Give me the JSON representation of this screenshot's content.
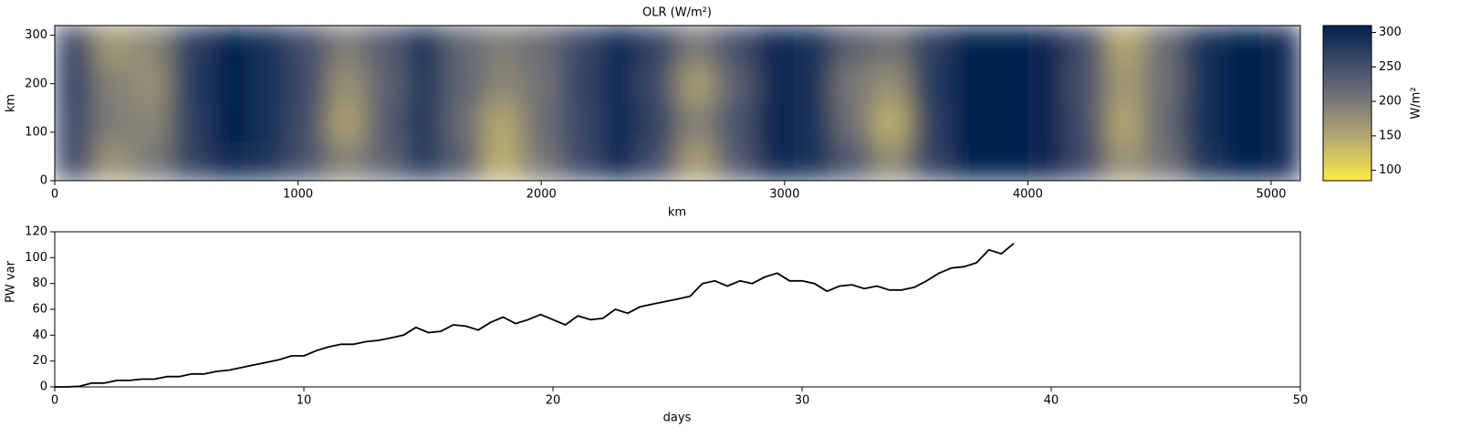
{
  "chart_data": [
    {
      "type": "heatmap",
      "title": "OLR (W/m²)",
      "xlabel": "km",
      "ylabel": "km",
      "xlim": [
        0,
        5120
      ],
      "xticks": [
        0,
        1000,
        2000,
        3000,
        4000,
        5000
      ],
      "ylim": [
        0,
        320
      ],
      "yticks": [
        0,
        100,
        200,
        300
      ],
      "values": [
        [
          255,
          170,
          200,
          265,
          300,
          285,
          245,
          190,
          225,
          275,
          230,
          140,
          200,
          255,
          295,
          250,
          160,
          235,
          300,
          290,
          240,
          180,
          265,
          305,
          305,
          300,
          255,
          170,
          205,
          285,
          305,
          300
        ],
        [
          260,
          195,
          185,
          270,
          305,
          290,
          250,
          155,
          235,
          280,
          215,
          150,
          215,
          260,
          295,
          265,
          190,
          245,
          300,
          290,
          210,
          140,
          270,
          305,
          305,
          300,
          250,
          150,
          220,
          290,
          305,
          300
        ],
        [
          265,
          190,
          175,
          275,
          305,
          290,
          255,
          175,
          225,
          280,
          225,
          185,
          205,
          265,
          295,
          255,
          160,
          230,
          300,
          290,
          200,
          175,
          275,
          305,
          305,
          300,
          245,
          165,
          210,
          290,
          305,
          300
        ],
        [
          260,
          165,
          185,
          270,
          305,
          290,
          250,
          195,
          235,
          285,
          220,
          195,
          215,
          260,
          295,
          265,
          200,
          250,
          300,
          290,
          230,
          210,
          270,
          305,
          305,
          300,
          250,
          150,
          215,
          290,
          305,
          300
        ]
      ],
      "colormap": "cividis_r",
      "clim": [
        85,
        310
      ],
      "cticks": [
        100,
        150,
        200,
        250,
        300
      ],
      "clabel": "W/m²"
    },
    {
      "type": "line",
      "xlabel": "days",
      "ylabel": "PW var",
      "color": "#000000",
      "xlim": [
        0,
        50
      ],
      "xticks": [
        0,
        10,
        20,
        30,
        40,
        50
      ],
      "ylim": [
        0,
        120
      ],
      "yticks": [
        0,
        20,
        40,
        60,
        80,
        100,
        120
      ],
      "x": [
        0,
        0.5,
        1,
        1.5,
        2,
        2.5,
        3,
        3.5,
        4,
        4.5,
        5,
        5.5,
        6,
        6.5,
        7,
        7.5,
        8,
        8.5,
        9,
        9.5,
        10,
        10.5,
        11,
        11.5,
        12,
        12.5,
        13,
        13.5,
        14,
        14.5,
        15,
        15.5,
        16,
        16.5,
        17,
        17.5,
        18,
        18.5,
        19,
        19.5,
        20,
        20.5,
        21,
        21.5,
        22,
        22.5,
        23,
        23.5,
        24,
        24.5,
        25,
        25.5,
        26,
        26.5,
        27,
        27.5,
        28,
        28.5,
        29,
        29.5,
        30,
        30.5,
        31,
        31.5,
        32,
        32.5,
        33,
        33.5,
        34,
        34.5,
        35,
        35.5,
        36,
        36.5,
        37,
        37.5,
        38,
        38.5
      ],
      "values": [
        0,
        0,
        0.5,
        3,
        3,
        5,
        5,
        6,
        6,
        8,
        8,
        10,
        10,
        12,
        13,
        15,
        17,
        19,
        21,
        24,
        24,
        28,
        31,
        33,
        33,
        35,
        36,
        38,
        40,
        46,
        42,
        43,
        48,
        47,
        44,
        50,
        54,
        49,
        52,
        56,
        52,
        48,
        55,
        52,
        53,
        60,
        57,
        62,
        64,
        66,
        68,
        70,
        80,
        82,
        78,
        82,
        80,
        85,
        88,
        82,
        82,
        80,
        74,
        78,
        79,
        76,
        78,
        75,
        75,
        77,
        82,
        88,
        92,
        93,
        96,
        106,
        103,
        111
      ]
    }
  ]
}
